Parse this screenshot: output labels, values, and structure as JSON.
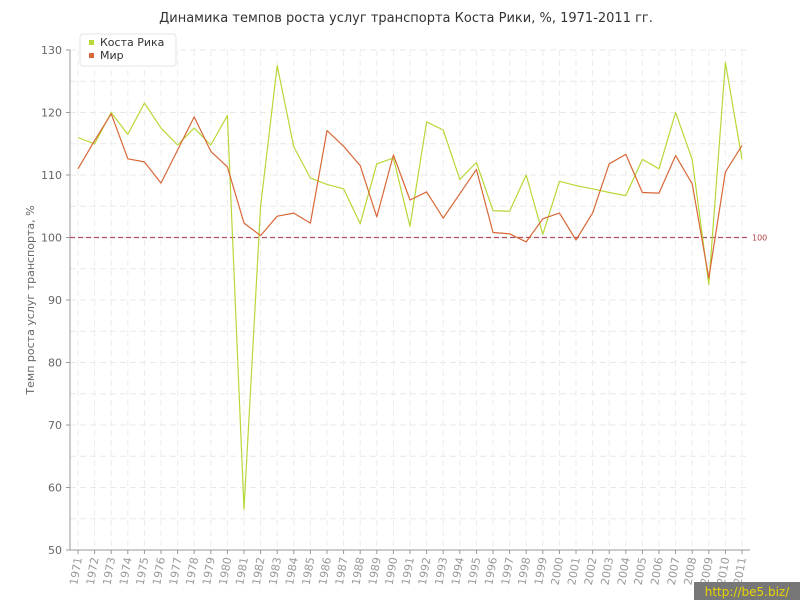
{
  "chart_data": {
    "type": "line",
    "title": "Динамика темпов роста услуг транспорта Коста Рики, %, 1971-2011 гг.",
    "ylabel": "Темп роста услуг транспорта, %",
    "xlabel": "",
    "ylim": [
      50,
      130
    ],
    "yticks": [
      50,
      60,
      70,
      80,
      90,
      100,
      110,
      120,
      130
    ],
    "grid": true,
    "legend_position": "top-left",
    "reference_line": {
      "value": 100,
      "label": "100",
      "color": "#b05060"
    },
    "x": [
      "1971",
      "1972",
      "1973",
      "1974",
      "1975",
      "1976",
      "1977",
      "1978",
      "1979",
      "1980",
      "1981",
      "1982",
      "1983",
      "1984",
      "1985",
      "1986",
      "1987",
      "1988",
      "1989",
      "1990",
      "1991",
      "1992",
      "1993",
      "1994",
      "1995",
      "1996",
      "1997",
      "1998",
      "1999",
      "2000",
      "2001",
      "2002",
      "2003",
      "2004",
      "2005",
      "2006",
      "2007",
      "2008",
      "2009",
      "2010",
      "2011"
    ],
    "series": [
      {
        "name": "Коста Рика",
        "color": "#b8d838",
        "values": [
          116.0,
          115.0,
          120.0,
          116.5,
          121.5,
          117.5,
          114.8,
          117.5,
          114.8,
          119.5,
          56.5,
          105.0,
          127.5,
          114.5,
          109.5,
          108.5,
          107.8,
          102.2,
          111.8,
          112.7,
          101.8,
          118.5,
          117.2,
          109.3,
          112.0,
          104.3,
          104.2,
          110.0,
          100.5,
          109.0,
          108.3,
          107.8,
          107.2,
          106.7,
          112.5,
          111.0,
          120.0,
          112.5,
          92.5,
          128.0,
          112.5
        ]
      },
      {
        "name": "Мир",
        "color": "#d86838",
        "values": [
          111.0,
          115.5,
          119.8,
          112.6,
          112.1,
          108.7,
          114.0,
          119.3,
          113.8,
          111.3,
          102.3,
          100.3,
          103.4,
          103.9,
          102.3,
          117.1,
          114.6,
          111.5,
          103.3,
          113.2,
          106.0,
          107.3,
          103.1,
          107.0,
          110.9,
          100.8,
          100.6,
          99.3,
          103.0,
          103.9,
          99.6,
          103.9,
          111.8,
          113.3,
          107.2,
          107.1,
          113.1,
          108.6,
          93.5,
          110.5,
          114.7
        ]
      }
    ]
  },
  "watermark": "http://be5.biz/"
}
